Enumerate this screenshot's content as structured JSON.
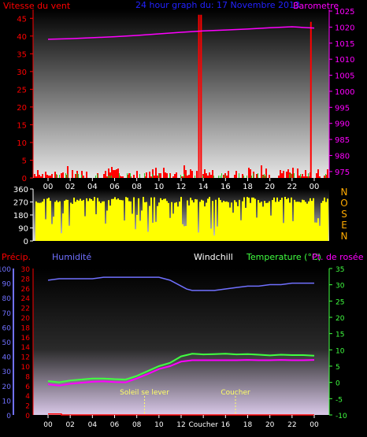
{
  "chart_data": [
    {
      "type": "line",
      "title": "24 hour graph du: 17 Novembre 2013",
      "ylabel_left": "Vitesse du vent",
      "ylabel_right": "Barometre",
      "x_ticks": [
        "00",
        "02",
        "04",
        "06",
        "08",
        "10",
        "12",
        "14",
        "16",
        "18",
        "20",
        "22",
        "00"
      ],
      "y_left_ticks": [
        "0",
        "5",
        "10",
        "15",
        "20",
        "25",
        "30",
        "35",
        "40",
        "45"
      ],
      "y_left_range": [
        0,
        47.5
      ],
      "y_right_ticks": [
        "975",
        "980",
        "985",
        "990",
        "995",
        "1000",
        "1005",
        "1010",
        "1015",
        "1020",
        "1025"
      ],
      "y_right_range": [
        973,
        1025.5
      ],
      "series": [
        {
          "name": "Barometre",
          "axis": "right",
          "color": "#ff00ff",
          "x_hours": [
            0,
            2,
            4,
            6,
            8,
            10,
            12,
            14,
            16,
            18,
            20,
            22,
            23,
            24
          ],
          "values": [
            1016.2,
            1016.4,
            1016.7,
            1017.0,
            1017.4,
            1017.9,
            1018.4,
            1018.8,
            1019.1,
            1019.4,
            1019.8,
            1020.1,
            1019.9,
            1019.7
          ]
        }
      ],
      "wind_max": {
        "color": "#ff0000",
        "spikes": [
          {
            "hour": 13.6,
            "value": 46
          },
          {
            "hour": 13.8,
            "value": 46
          },
          {
            "hour": 23.7,
            "value": 44
          }
        ]
      },
      "grid": false
    },
    {
      "type": "bar",
      "ylabel_left": "",
      "y_ticks": [
        "0",
        "90",
        "180",
        "270",
        "360"
      ],
      "y_range": [
        0,
        360
      ],
      "compass_labels": [
        "N",
        "O",
        "S",
        "E",
        "N"
      ],
      "x_ticks": [
        "00",
        "02",
        "04",
        "06",
        "08",
        "10",
        "12",
        "14",
        "16",
        "18",
        "20",
        "22",
        "00"
      ],
      "series": [
        {
          "name": "",
          "color": "#ffff00"
        }
      ]
    },
    {
      "type": "line",
      "label_precip": "Précip.",
      "label_humidity": "Humidité",
      "label_windchill": "Windchill",
      "label_temperature": "Temperature (°C)",
      "label_dewpoint": "Pt. de rosée",
      "y_humidity_ticks": [
        "0",
        "10",
        "20",
        "30",
        "40",
        "50",
        "60",
        "70",
        "80",
        "90",
        "100"
      ],
      "y_precip_ticks": [
        "0",
        "2",
        "4",
        "6",
        "8",
        "10",
        "12",
        "14",
        "16",
        "18",
        "20",
        "22",
        "24",
        "26",
        "28",
        "30"
      ],
      "y_temp_ticks": [
        "-10",
        "-5",
        "0",
        "5",
        "10",
        "15",
        "20",
        "25",
        "30",
        "35"
      ],
      "temp_range": [
        -10,
        35
      ],
      "humidity_range": [
        0,
        100
      ],
      "x_ticks": [
        "00",
        "02",
        "04",
        "06",
        "08",
        "10",
        "12",
        "Coucher",
        "16",
        "18",
        "20",
        "22",
        "00"
      ],
      "annotations": [
        {
          "text": "Soleil se lever",
          "hour": 8.7
        },
        {
          "text": "Coucher",
          "hour": 16.9
        }
      ],
      "series": [
        {
          "name": "Humidité",
          "axis": "humidity",
          "color": "#7070ff",
          "x_hours": [
            0,
            1,
            2,
            3,
            4,
            5,
            6,
            7,
            8,
            9,
            10,
            11,
            12,
            12.5,
            13,
            14,
            15,
            16,
            17,
            18,
            19,
            20,
            21,
            22,
            23,
            24
          ],
          "values": [
            92,
            93,
            93,
            93,
            93,
            94,
            94,
            94,
            94,
            94,
            94,
            92,
            88,
            86,
            85,
            85,
            85,
            86,
            87,
            88,
            88,
            89,
            89,
            90,
            90,
            90
          ]
        },
        {
          "name": "Temperature (°C)",
          "axis": "temp",
          "color": "#40ff40",
          "x_hours": [
            0,
            1,
            2,
            3,
            4,
            5,
            6,
            7,
            8,
            9,
            10,
            11,
            12,
            13,
            14,
            15,
            16,
            17,
            18,
            19,
            20,
            21,
            22,
            23,
            24
          ],
          "values": [
            0.4,
            0.0,
            0.6,
            0.9,
            1.2,
            1.2,
            1.0,
            0.9,
            2.0,
            3.5,
            5.0,
            6.0,
            8.0,
            8.8,
            8.6,
            8.7,
            8.8,
            8.6,
            8.7,
            8.5,
            8.3,
            8.5,
            8.4,
            8.4,
            8.2
          ]
        },
        {
          "name": "Pt. de rosée",
          "axis": "temp",
          "color": "#ff00ff",
          "x_hours": [
            0,
            1,
            2,
            3,
            4,
            5,
            6,
            7,
            8,
            9,
            10,
            11,
            12,
            13,
            14,
            15,
            16,
            17,
            18,
            19,
            20,
            21,
            22,
            23,
            24
          ],
          "values": [
            -0.6,
            -1.0,
            -0.4,
            -0.1,
            0.2,
            0.3,
            0.1,
            0.0,
            1.2,
            2.6,
            4.1,
            5.0,
            6.4,
            6.8,
            6.8,
            6.8,
            6.8,
            6.8,
            6.9,
            6.8,
            6.8,
            6.9,
            6.8,
            6.8,
            6.9
          ]
        },
        {
          "name": "Précip.",
          "axis": "precip",
          "color": "#ff0000",
          "x_hours": [
            0,
            1.2,
            1.2,
            24
          ],
          "values": [
            0.8,
            0.8,
            0,
            0
          ]
        }
      ]
    }
  ]
}
